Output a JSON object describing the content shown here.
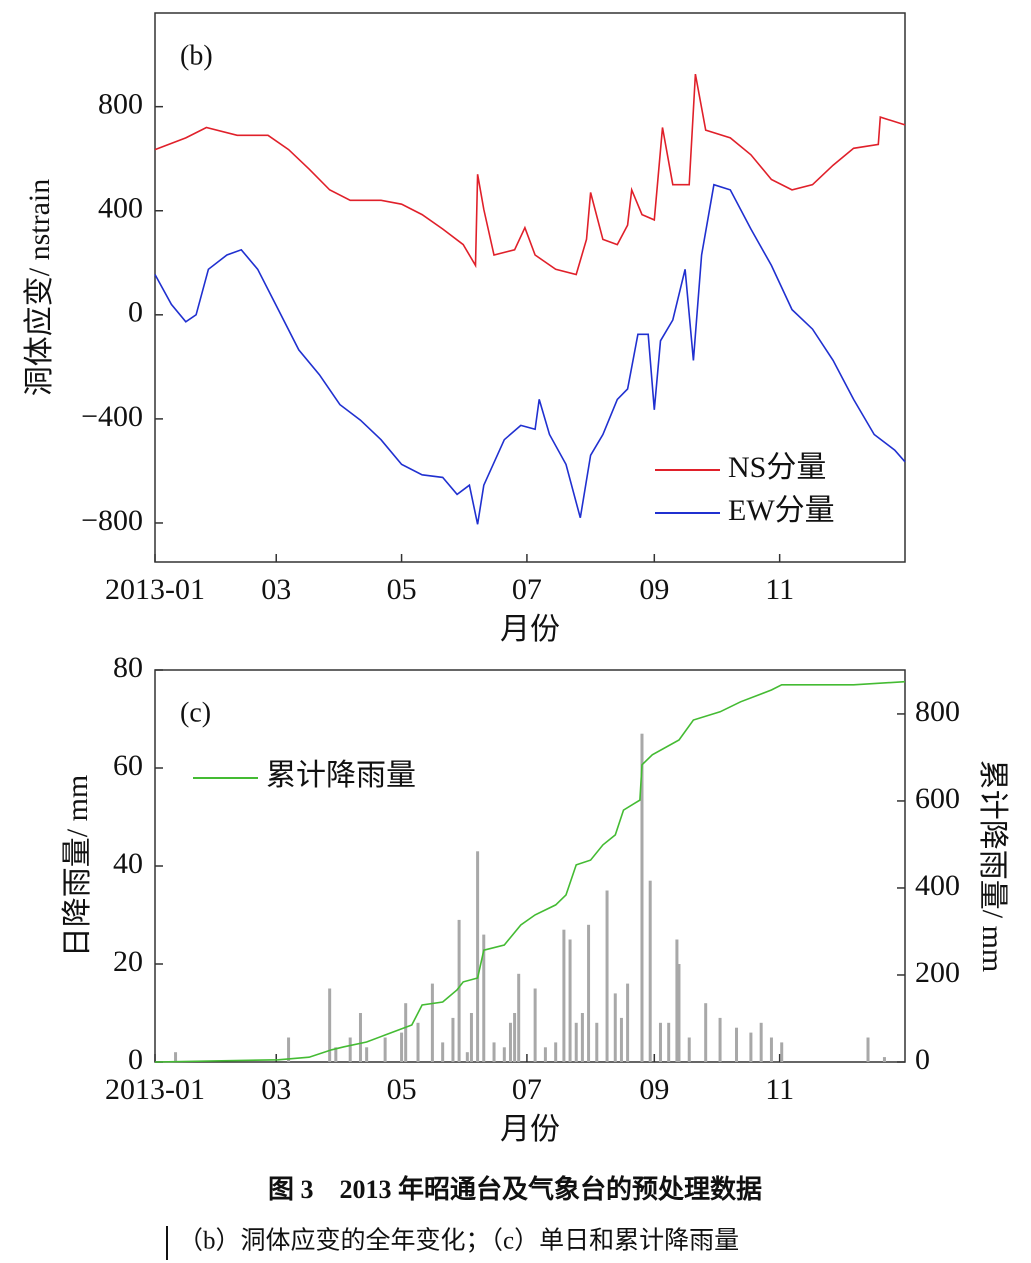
{
  "chart_data": [
    {
      "type": "line",
      "panel_label": "(b)",
      "xlabel": "月份",
      "ylabel": "洞体应变/ nstrain",
      "xlim": [
        0,
        365
      ],
      "xticks": [
        {
          "value": 0,
          "label": "2013-01"
        },
        {
          "value": 59,
          "label": "03"
        },
        {
          "value": 120,
          "label": "05"
        },
        {
          "value": 181,
          "label": "07"
        },
        {
          "value": 243,
          "label": "09"
        },
        {
          "value": 304,
          "label": "11"
        }
      ],
      "ylim": [
        -950,
        1160
      ],
      "yticks": [
        {
          "value": -800,
          "label": "−800"
        },
        {
          "value": -400,
          "label": "−400"
        },
        0,
        400,
        800
      ],
      "legend": "lower right",
      "series": [
        {
          "name": "NS分量",
          "color": "#e0202a",
          "x": [
            0,
            15,
            25,
            40,
            55,
            65,
            75,
            85,
            95,
            110,
            120,
            130,
            140,
            150,
            156,
            157,
            160,
            165,
            175,
            180,
            185,
            195,
            205,
            210,
            212,
            218,
            225,
            230,
            232,
            237,
            243,
            247,
            252,
            260,
            263,
            268,
            280,
            290,
            300,
            310,
            320,
            330,
            340,
            352,
            353,
            365
          ],
          "values": [
            635,
            680,
            720,
            690,
            690,
            635,
            560,
            480,
            440,
            440,
            425,
            385,
            330,
            270,
            190,
            540,
            405,
            230,
            250,
            335,
            230,
            175,
            155,
            290,
            470,
            290,
            270,
            345,
            480,
            385,
            365,
            720,
            500,
            500,
            925,
            710,
            680,
            615,
            520,
            480,
            500,
            575,
            640,
            655,
            760,
            730
          ]
        },
        {
          "name": "EW分量",
          "color": "#2030d0",
          "x": [
            0,
            8,
            15,
            20,
            26,
            35,
            42,
            50,
            60,
            70,
            80,
            90,
            100,
            110,
            120,
            130,
            140,
            147,
            153,
            157,
            160,
            170,
            178,
            185,
            187,
            192,
            200,
            207,
            212,
            218,
            225,
            230,
            235,
            240,
            243,
            246,
            252,
            258,
            262,
            266,
            272,
            280,
            290,
            300,
            310,
            320,
            330,
            340,
            350,
            360,
            365
          ],
          "values": [
            155,
            40,
            -27,
            0,
            175,
            230,
            250,
            175,
            20,
            -135,
            -230,
            -345,
            -405,
            -480,
            -575,
            -615,
            -625,
            -690,
            -655,
            -805,
            -655,
            -480,
            -425,
            -440,
            -325,
            -460,
            -575,
            -780,
            -540,
            -460,
            -325,
            -285,
            -75,
            -75,
            -365,
            -100,
            -20,
            175,
            -175,
            230,
            500,
            480,
            330,
            190,
            20,
            -55,
            -175,
            -325,
            -460,
            -520,
            -565
          ]
        }
      ]
    },
    {
      "type": "bar",
      "panel_label": "(c)",
      "xlabel": "月份",
      "ylabel": "日降雨量/ mm",
      "y2label": "累计降雨量/ mm",
      "xlim": [
        0,
        365
      ],
      "xticks": [
        {
          "value": 0,
          "label": "2013-01"
        },
        {
          "value": 59,
          "label": "03"
        },
        {
          "value": 120,
          "label": "05"
        },
        {
          "value": 181,
          "label": "07"
        },
        {
          "value": 243,
          "label": "09"
        },
        {
          "value": 304,
          "label": "11"
        }
      ],
      "ylim": [
        0,
        80
      ],
      "yticks": [
        0,
        20,
        40,
        60,
        80
      ],
      "y2lim": [
        0,
        901
      ],
      "y2ticks": [
        0,
        200,
        400,
        600,
        800
      ],
      "legend": "upper left",
      "series": [
        {
          "color": "#a8a8a8",
          "x": [
            10,
            65,
            85,
            88,
            95,
            100,
            103,
            112,
            120,
            122,
            128,
            135,
            140,
            145,
            148,
            152,
            154,
            157,
            160,
            165,
            170,
            173,
            175,
            177,
            185,
            190,
            195,
            199,
            202,
            205,
            208,
            211,
            215,
            220,
            224,
            227,
            230,
            237,
            241,
            246,
            250,
            254,
            255,
            260,
            268,
            275,
            283,
            290,
            295,
            300,
            305,
            347,
            355
          ],
          "values": [
            2,
            5,
            15,
            3,
            5,
            10,
            3,
            5,
            6,
            12,
            8,
            16,
            4,
            9,
            29,
            2,
            10,
            43,
            26,
            4,
            3,
            8,
            10,
            18,
            15,
            3,
            4,
            27,
            25,
            8,
            10,
            28,
            8,
            35,
            14,
            9,
            16,
            67,
            37,
            8,
            8,
            25,
            20,
            5,
            12,
            9,
            7,
            6,
            8,
            5,
            4,
            5,
            1
          ]
        },
        {
          "name": "累计降雨量",
          "type": "line",
          "axis": "y2",
          "color": "#44bb33",
          "x": [
            0,
            60,
            75,
            86,
            92,
            103,
            112,
            125,
            130,
            140,
            147,
            150,
            157,
            160,
            170,
            178,
            185,
            195,
            200,
            205,
            212,
            218,
            224,
            228,
            236,
            237,
            242,
            255,
            262,
            275,
            285,
            300,
            305,
            340,
            365
          ],
          "values": [
            0,
            5,
            11,
            28,
            35,
            46,
            62,
            85,
            131,
            138,
            166,
            184,
            193,
            257,
            269,
            315,
            338,
            361,
            384,
            453,
            464,
            499,
            522,
            579,
            602,
            683,
            706,
            740,
            786,
            805,
            828,
            855,
            867,
            867,
            874
          ]
        }
      ]
    }
  ],
  "caption": {
    "title": "图 3　2013 年昭通台及气象台的预处理数据",
    "subtitle": "（b）洞体应变的全年变化；（c）单日和累计降雨量"
  }
}
